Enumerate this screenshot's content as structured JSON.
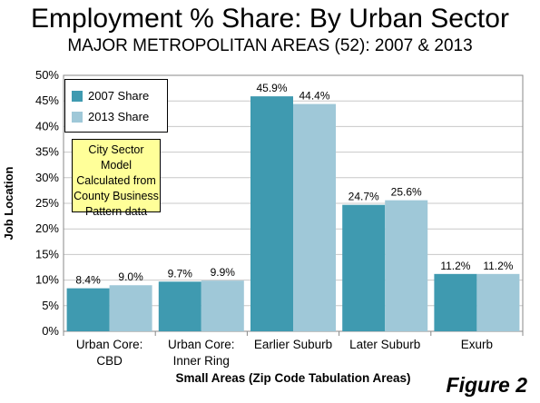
{
  "header": {
    "title": "Employment % Share: By Urban Sector",
    "subtitle": "MAJOR METROPOLITAN AREAS (52): 2007 & 2013"
  },
  "note": {
    "lines": [
      "City Sector Model",
      "Calculated from",
      "County Business",
      "Pattern data"
    ]
  },
  "figure_label": "Figure 2",
  "colors": {
    "series_2007": "#3f9ab0",
    "series_2013": "#9fc8d8",
    "grid": "#c8c8c8"
  },
  "chart_data": {
    "type": "bar",
    "title": "Employment % Share: By Urban Sector",
    "subtitle": "MAJOR METROPOLITAN AREAS (52): 2007 & 2013",
    "xlabel": "Small Areas (Zip Code Tabulation Areas)",
    "ylabel": "Job Location",
    "categories": [
      [
        "Urban Core:",
        "CBD"
      ],
      [
        "Urban Core:",
        "Inner Ring"
      ],
      [
        "Earlier Suburb"
      ],
      [
        "Later Suburb"
      ],
      [
        "Exurb"
      ]
    ],
    "series": [
      {
        "name": "2007 Share",
        "values": [
          8.4,
          9.7,
          45.9,
          24.7,
          11.2
        ],
        "labels": [
          "8.4%",
          "9.7%",
          "45.9%",
          "24.7%",
          "11.2%"
        ]
      },
      {
        "name": "2013 Share",
        "values": [
          9.0,
          9.9,
          44.4,
          25.6,
          11.2
        ],
        "labels": [
          "9.0%",
          "9.9%",
          "44.4%",
          "25.6%",
          "11.2%"
        ]
      }
    ],
    "ylim": [
      0,
      50
    ],
    "yticks": [
      0,
      5,
      10,
      15,
      20,
      25,
      30,
      35,
      40,
      45,
      50
    ],
    "ytick_labels": [
      "0%",
      "5%",
      "10%",
      "15%",
      "20%",
      "25%",
      "30%",
      "35%",
      "40%",
      "45%",
      "50%"
    ],
    "grid": true,
    "legend_position": "top-left"
  }
}
